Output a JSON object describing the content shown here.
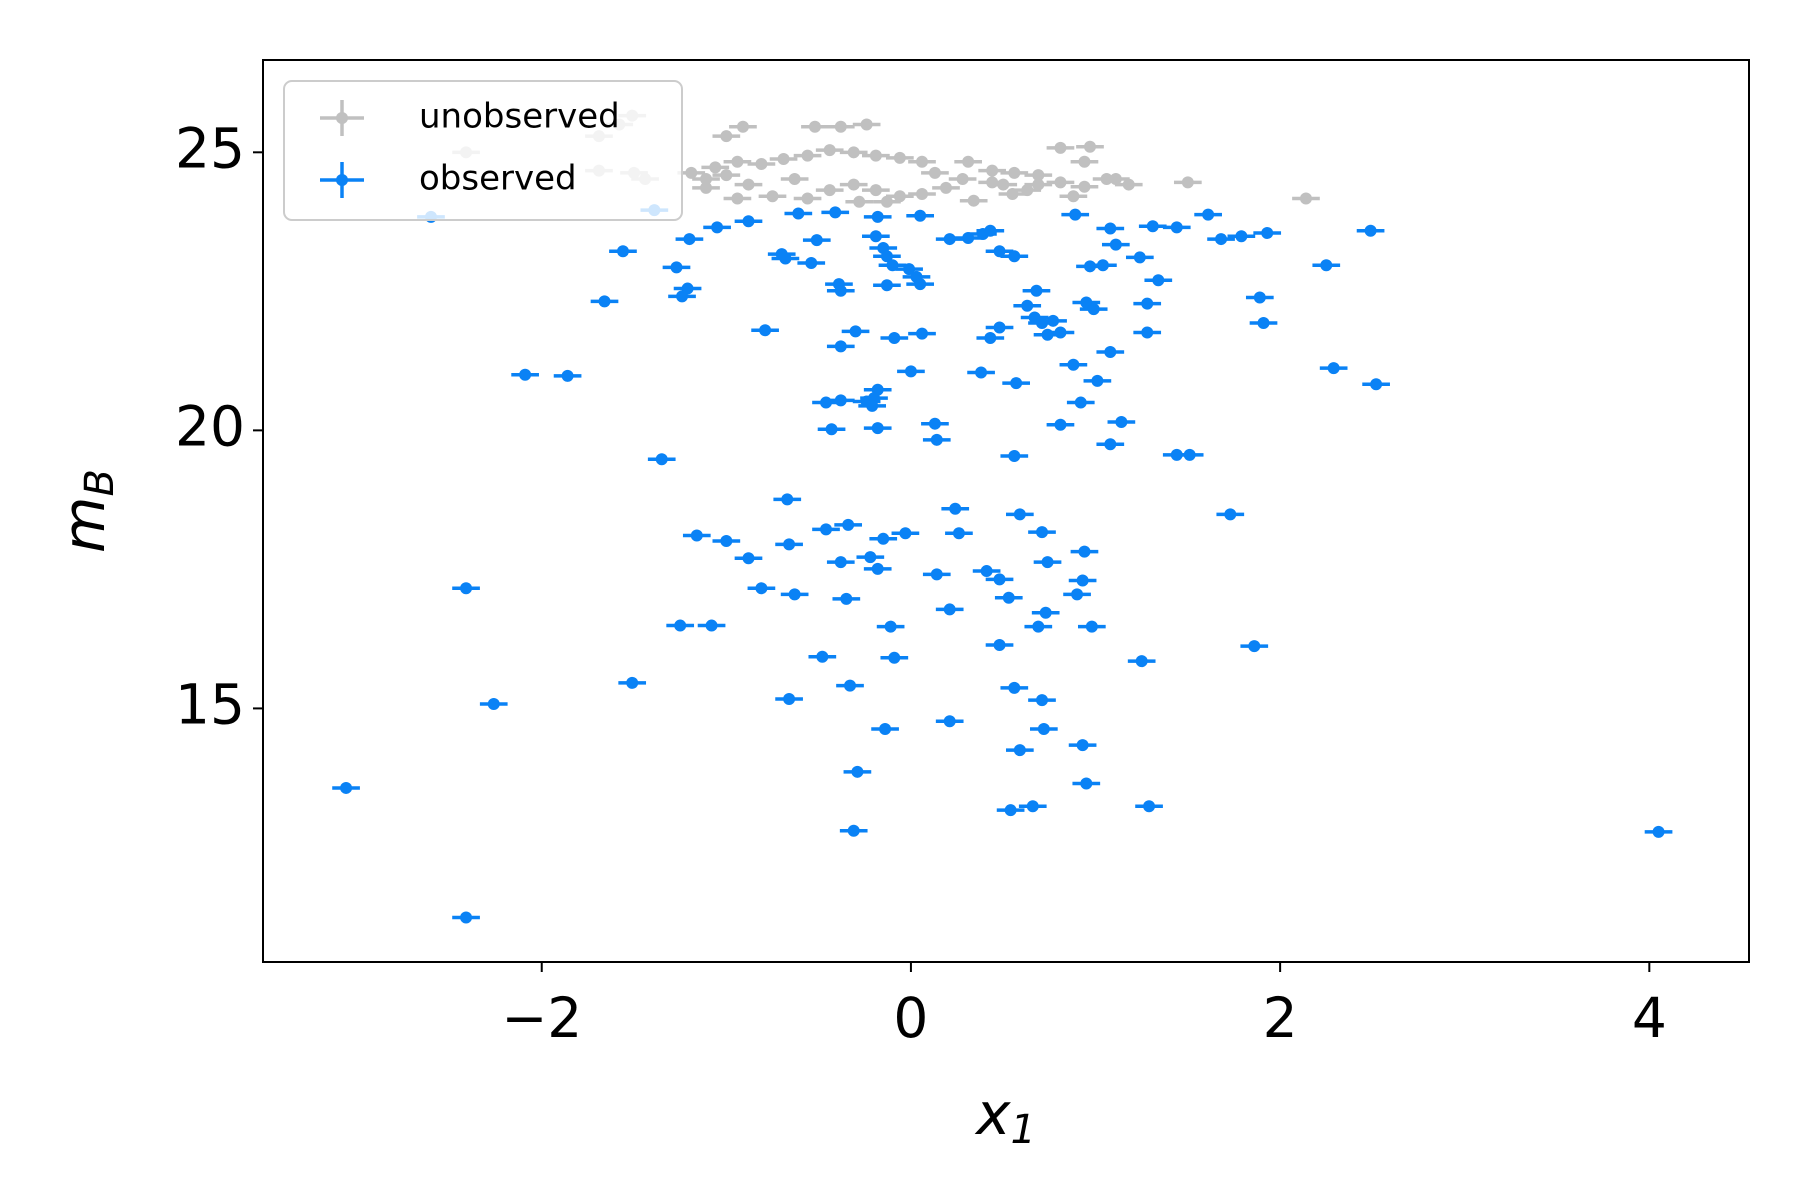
{
  "chart_data": {
    "type": "scatter",
    "xlabel": {
      "text": "x",
      "subscript": "1"
    },
    "ylabel": {
      "text": "m",
      "subscript": "B"
    },
    "xlim": [
      -3.51,
      4.54
    ],
    "ylim": [
      10.44,
      26.66
    ],
    "xticks": [
      {
        "value": -2,
        "label": "−2"
      },
      0,
      2,
      4
    ],
    "yticks": [
      15,
      20,
      25
    ],
    "legend": "upper left",
    "series": [
      {
        "name": "observed",
        "color": "#0a82f5",
        "xerr": 0.075,
        "yerr": 0.04,
        "x": [
          -2.6,
          -1.39,
          -1.05,
          -0.61,
          -0.41,
          -0.18,
          0.05,
          0.89,
          1.08,
          1.31,
          1.44,
          1.61,
          1.68,
          1.79,
          1.93,
          2.49,
          -1.2,
          -1.56,
          -1.27,
          -1.21,
          -1.24,
          -1.66,
          -0.88,
          -0.7,
          -0.68,
          -0.51,
          -0.54,
          -0.39,
          -0.38,
          -0.19,
          -0.15,
          -0.13,
          -0.1,
          -0.01,
          0.03,
          -0.13,
          0.05,
          0.21,
          0.31,
          0.39,
          0.43,
          0.48,
          0.56,
          0.68,
          0.63,
          0.67,
          0.71,
          0.74,
          0.81,
          0.95,
          0.99,
          0.97,
          1.04,
          1.11,
          1.24,
          1.34,
          1.28,
          1.89,
          1.91,
          2.25,
          1.28,
          -0.79,
          -0.3,
          -0.38,
          -0.09,
          0.06,
          0.48,
          0.43,
          0.77,
          0.88,
          1.01,
          1.08,
          0.57,
          0.38,
          0.0,
          -2.09,
          -1.86,
          2.29,
          2.52,
          -0.46,
          -0.38,
          -0.24,
          -0.2,
          -0.18,
          -0.21,
          0.92,
          0.81,
          1.14,
          0.13,
          0.14,
          1.08,
          -0.43,
          -0.18,
          -1.35,
          1.44,
          1.51,
          0.56,
          -0.67,
          0.24,
          0.59,
          -0.46,
          -0.34,
          -1.16,
          -1.0,
          -0.66,
          -0.15,
          -0.03,
          0.26,
          0.71,
          0.94,
          1.73,
          -0.88,
          -0.38,
          -0.22,
          -0.18,
          0.14,
          0.41,
          0.48,
          0.74,
          0.93,
          0.9,
          -0.81,
          -0.63,
          -0.35,
          0.21,
          0.53,
          0.73,
          0.69,
          -2.41,
          -1.25,
          -1.08,
          -0.11,
          0.98,
          -0.48,
          -0.09,
          0.48,
          1.25,
          1.86,
          -1.51,
          -0.33,
          -2.26,
          -0.66,
          0.56,
          0.71,
          0.21,
          -0.14,
          0.72,
          0.93,
          0.59,
          -0.29,
          -3.06,
          0.95,
          0.54,
          0.66,
          1.29,
          -0.31,
          4.05,
          -2.41
        ],
        "y": [
          23.84,
          23.96,
          23.65,
          23.9,
          23.92,
          23.84,
          23.86,
          23.88,
          23.63,
          23.67,
          23.65,
          23.88,
          23.44,
          23.49,
          23.55,
          23.59,
          23.44,
          23.22,
          22.93,
          22.55,
          22.41,
          22.32,
          23.76,
          23.17,
          23.09,
          23.42,
          23.01,
          22.63,
          22.51,
          23.49,
          23.28,
          23.13,
          22.97,
          22.9,
          22.76,
          22.61,
          22.63,
          23.44,
          23.46,
          23.53,
          23.59,
          23.22,
          23.13,
          22.51,
          22.24,
          22.03,
          21.93,
          21.72,
          21.76,
          22.3,
          22.18,
          22.95,
          22.97,
          23.34,
          23.11,
          22.7,
          22.28,
          22.39,
          21.93,
          22.97,
          21.76,
          21.8,
          21.78,
          21.51,
          21.66,
          21.74,
          21.85,
          21.66,
          21.97,
          21.18,
          20.89,
          21.41,
          20.85,
          21.04,
          21.06,
          21.0,
          20.98,
          21.12,
          20.83,
          20.5,
          20.54,
          20.52,
          20.58,
          20.73,
          20.44,
          20.5,
          20.1,
          20.15,
          20.12,
          19.83,
          19.75,
          20.02,
          20.04,
          19.48,
          19.56,
          19.56,
          19.54,
          18.76,
          18.59,
          18.49,
          18.22,
          18.3,
          18.11,
          18.01,
          17.95,
          18.05,
          18.15,
          18.15,
          18.17,
          17.82,
          18.49,
          17.7,
          17.63,
          17.72,
          17.51,
          17.41,
          17.47,
          17.32,
          17.63,
          17.3,
          17.05,
          17.16,
          17.05,
          16.97,
          16.78,
          16.99,
          16.72,
          16.47,
          17.16,
          16.49,
          16.49,
          16.47,
          16.47,
          15.93,
          15.91,
          16.14,
          15.85,
          16.12,
          15.46,
          15.41,
          15.08,
          15.17,
          15.37,
          15.15,
          14.77,
          14.63,
          14.63,
          14.34,
          14.25,
          13.86,
          13.57,
          13.65,
          13.17,
          13.24,
          13.24,
          12.8,
          12.78,
          11.24
        ]
      },
      {
        "name": "unobserved",
        "color": "#c0c0c0",
        "xerr": 0.075,
        "yerr": 0.04,
        "x": [
          -2.41,
          -1.69,
          -1.58,
          -1.51,
          -1.0,
          -0.91,
          -0.52,
          -0.38,
          -0.24,
          0.81,
          0.97,
          -0.94,
          -1.06,
          -1.19,
          -1.11,
          -1.0,
          -0.81,
          -0.69,
          -0.56,
          -0.44,
          -0.31,
          -0.19,
          -0.06,
          0.06,
          0.31,
          0.44,
          0.56,
          0.69,
          0.81,
          0.94,
          1.06,
          1.18,
          1.5,
          2.14,
          -0.88,
          -0.75,
          -0.56,
          -0.44,
          -0.31,
          -0.19,
          -0.06,
          0.06,
          0.19,
          0.34,
          0.44,
          0.55,
          0.69,
          0.88,
          -1.5,
          -1.44,
          -1.11,
          -0.94,
          -0.63,
          -0.28,
          -0.13,
          0.13,
          0.28,
          0.5,
          0.63,
          0.94,
          1.11,
          -1.69
        ],
        "y": [
          25.0,
          25.29,
          25.5,
          25.66,
          25.29,
          25.46,
          25.46,
          25.46,
          25.5,
          25.08,
          25.1,
          24.83,
          24.73,
          24.63,
          24.52,
          24.59,
          24.79,
          24.88,
          24.94,
          25.04,
          25.0,
          24.94,
          24.9,
          24.83,
          24.83,
          24.67,
          24.63,
          24.59,
          24.46,
          24.38,
          24.52,
          24.42,
          24.46,
          24.17,
          24.42,
          24.21,
          24.17,
          24.32,
          24.42,
          24.32,
          24.21,
          24.25,
          24.36,
          24.13,
          24.46,
          24.25,
          24.42,
          24.21,
          24.63,
          24.52,
          24.36,
          24.17,
          24.52,
          24.11,
          24.11,
          24.63,
          24.52,
          24.42,
          24.32,
          24.83,
          24.52,
          24.67
        ]
      }
    ]
  }
}
